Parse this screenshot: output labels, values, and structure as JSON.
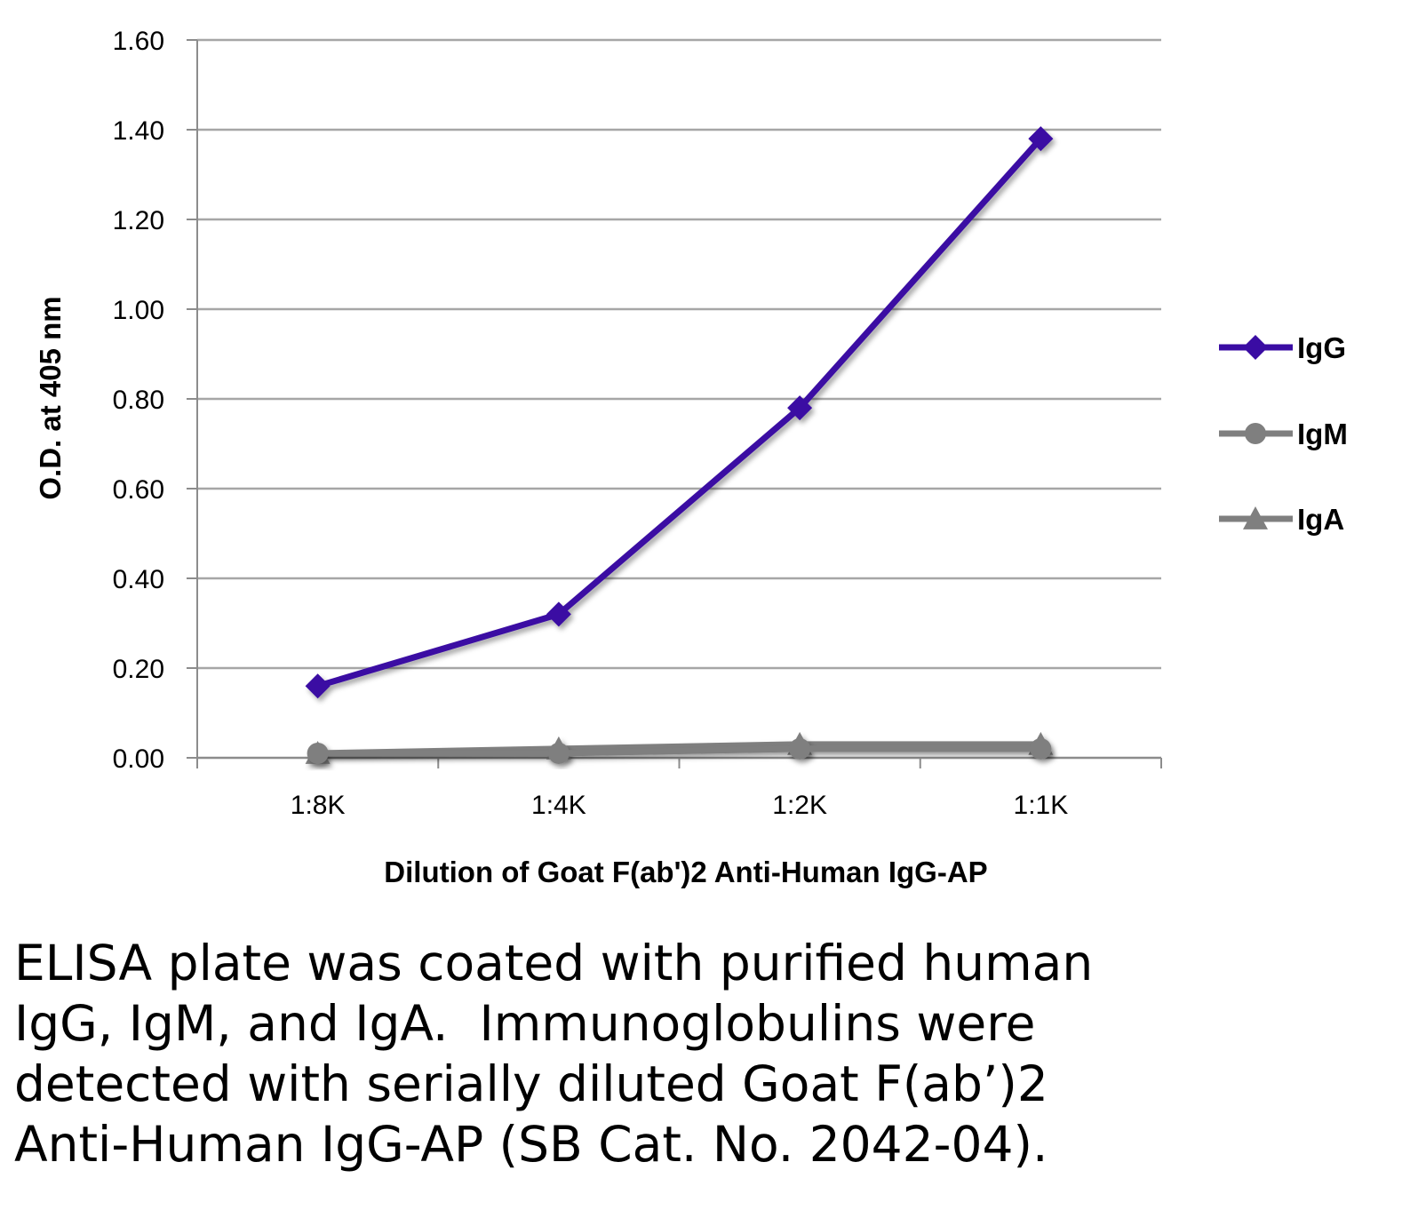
{
  "chart_data": {
    "type": "line",
    "categories": [
      "1:8K",
      "1:4K",
      "1:2K",
      "1:1K"
    ],
    "series": [
      {
        "name": "IgG",
        "values": [
          0.16,
          0.32,
          0.78,
          1.38
        ],
        "color": "#3a0ca3",
        "marker": "diamond"
      },
      {
        "name": "IgM",
        "values": [
          0.01,
          0.01,
          0.02,
          0.02
        ],
        "color": "#7f7f7f",
        "marker": "circle"
      },
      {
        "name": "IgA",
        "values": [
          0.01,
          0.02,
          0.03,
          0.03
        ],
        "color": "#7f7f7f",
        "marker": "triangle"
      }
    ],
    "xlabel": "Dilution of Goat F(ab')2 Anti-Human IgG-AP",
    "ylabel": "O.D. at 405 nm",
    "ylim": [
      0,
      1.6
    ],
    "yticks": [
      "0.00",
      "0.20",
      "0.40",
      "0.60",
      "0.80",
      "1.00",
      "1.20",
      "1.40",
      "1.60"
    ],
    "grid": true,
    "legend_position": "right"
  },
  "caption": "ELISA plate was coated with purified human\nIgG, IgM, and IgA.  Immunoglobulins were\ndetected with serially diluted Goat F(ab’)2\nAnti-Human IgG-AP (SB Cat. No. 2042-04)."
}
